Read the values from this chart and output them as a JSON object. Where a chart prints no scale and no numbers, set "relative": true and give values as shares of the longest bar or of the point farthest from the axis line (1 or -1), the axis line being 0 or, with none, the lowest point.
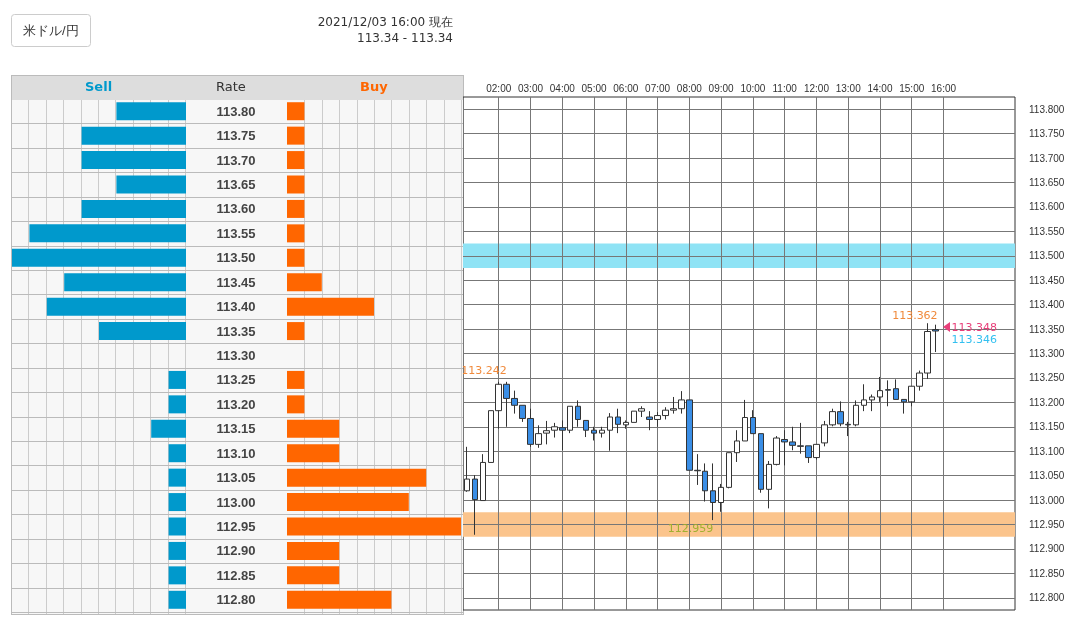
{
  "chart_data": [
    {
      "type": "bar",
      "title": "米ドル/円",
      "orientation": "horizontal",
      "relative": true,
      "ylabel": "Rate",
      "legend": false,
      "annotations": [
        "2021/12/03 16:00 現在",
        "113.34 - 113.34"
      ],
      "categories": [
        "113.80",
        "113.75",
        "113.70",
        "113.65",
        "113.60",
        "113.55",
        "113.50",
        "113.45",
        "113.40",
        "113.35",
        "113.30",
        "113.25",
        "113.20",
        "113.15",
        "113.10",
        "113.05",
        "113.00",
        "112.95",
        "112.90",
        "112.85",
        "112.80"
      ],
      "series": [
        {
          "name": "Sell",
          "color": "#0099cc",
          "values": [
            0.4,
            0.6,
            0.6,
            0.4,
            0.6,
            0.9,
            1,
            0.7,
            0.8,
            0.5,
            0,
            0.1,
            0.1,
            0.2,
            0.1,
            0.1,
            0.1,
            0.1,
            0.1,
            0.1,
            0.1
          ]
        }
      ]
    },
    {
      "type": "bar",
      "orientation": "horizontal",
      "relative": true,
      "legend": false,
      "tick_labels": false,
      "categories": [
        "113.80",
        "113.75",
        "113.70",
        "113.65",
        "113.60",
        "113.55",
        "113.50",
        "113.45",
        "113.40",
        "113.35",
        "113.30",
        "113.25",
        "113.20",
        "113.15",
        "113.10",
        "113.05",
        "113.00",
        "112.95",
        "112.90",
        "112.85",
        "112.80"
      ],
      "series": [
        {
          "name": "Buy",
          "color": "#ff6600",
          "values": [
            0.1,
            0.1,
            0.1,
            0.1,
            0.1,
            0.1,
            0.1,
            0.2,
            0.5,
            0.1,
            0,
            0.1,
            0.1,
            0.3,
            0.3,
            0.8,
            0.7,
            1,
            0.3,
            0.3,
            0.6
          ]
        }
      ]
    },
    {
      "type": "candlestick",
      "grid": true,
      "x": [
        1,
        1.25,
        1.5,
        1.75,
        2,
        2.25,
        2.5,
        2.75,
        3,
        3.25,
        3.5,
        3.75,
        4,
        4.25,
        4.5,
        4.75,
        5,
        5.25,
        5.5,
        5.75,
        6,
        6.25,
        6.5,
        6.75,
        7,
        7.25,
        7.5,
        7.75,
        8,
        8.25,
        8.5,
        8.75,
        9,
        9.25,
        9.5,
        9.75,
        10,
        10.25,
        10.5,
        10.75,
        11,
        11.25,
        11.5,
        11.75,
        12,
        12.25,
        12.5,
        12.75,
        13,
        13.25,
        13.5,
        13.75,
        14,
        14.25,
        14.5,
        14.75,
        15,
        15.25,
        15.5,
        15.75
      ],
      "ohlc": [
        [
          113.019,
          113.109,
          113.017,
          113.043
        ],
        [
          113.043,
          113.051,
          112.929,
          113.001
        ],
        [
          112.999,
          113.094,
          112.999,
          113.077
        ],
        [
          113.077,
          113.183,
          113.077,
          113.183
        ],
        [
          113.183,
          113.242,
          113.146,
          113.237
        ],
        [
          113.237,
          113.242,
          113.15,
          113.208
        ],
        [
          113.208,
          113.224,
          113.177,
          113.194
        ],
        [
          113.194,
          113.194,
          113.16,
          113.167
        ],
        [
          113.167,
          113.187,
          113.109,
          113.114
        ],
        [
          113.114,
          113.153,
          113.107,
          113.136
        ],
        [
          113.137,
          113.162,
          113.114,
          113.142
        ],
        [
          113.143,
          113.158,
          113.128,
          113.15
        ],
        [
          113.148,
          113.163,
          113.102,
          113.143
        ],
        [
          113.143,
          113.192,
          113.137,
          113.192
        ],
        [
          113.192,
          113.204,
          113.15,
          113.165
        ],
        [
          113.163,
          113.163,
          113.129,
          113.143
        ],
        [
          113.143,
          113.15,
          113.122,
          113.137
        ],
        [
          113.137,
          113.15,
          113.128,
          113.143
        ],
        [
          113.143,
          113.178,
          113.101,
          113.17
        ],
        [
          113.17,
          113.187,
          113.137,
          113.155
        ],
        [
          113.154,
          113.163,
          113.146,
          113.159
        ],
        [
          113.159,
          113.182,
          113.159,
          113.182
        ],
        [
          113.182,
          113.192,
          113.17,
          113.187
        ],
        [
          113.17,
          113.182,
          113.143,
          113.165
        ],
        [
          113.165,
          113.18,
          113.15,
          113.173
        ],
        [
          113.173,
          113.19,
          113.165,
          113.184
        ],
        [
          113.184,
          113.211,
          113.177,
          113.187
        ],
        [
          113.187,
          113.223,
          113.177,
          113.205
        ],
        [
          113.205,
          113.205,
          113.061,
          113.061
        ],
        [
          113.061,
          113.094,
          113.031,
          113.06
        ],
        [
          113.059,
          113.075,
          112.997,
          113.019
        ],
        [
          113.019,
          113.075,
          112.959,
          112.995
        ],
        [
          112.995,
          113.033,
          112.976,
          113.026
        ],
        [
          113.026,
          113.097,
          113.024,
          113.097
        ],
        [
          113.097,
          113.143,
          113.078,
          113.121
        ],
        [
          113.121,
          113.205,
          113.121,
          113.169
        ],
        [
          113.169,
          113.184,
          113.136,
          113.136
        ],
        [
          113.136,
          113.136,
          113.015,
          113.022
        ],
        [
          113.022,
          113.08,
          112.983,
          113.073
        ],
        [
          113.073,
          113.131,
          113.071,
          113.127
        ],
        [
          113.124,
          113.143,
          113.071,
          113.119
        ],
        [
          113.119,
          113.15,
          113.102,
          113.112
        ],
        [
          113.111,
          113.158,
          113.095,
          113.11
        ],
        [
          113.111,
          113.111,
          113.076,
          113.087
        ],
        [
          113.087,
          113.114,
          113.083,
          113.114
        ],
        [
          113.117,
          113.162,
          113.11,
          113.154
        ],
        [
          113.154,
          113.187,
          113.151,
          113.181
        ],
        [
          113.181,
          113.202,
          113.151,
          113.156
        ],
        [
          113.155,
          113.16,
          113.131,
          113.154
        ],
        [
          113.154,
          113.204,
          113.151,
          113.194
        ],
        [
          113.194,
          113.237,
          113.182,
          113.205
        ],
        [
          113.205,
          113.216,
          113.182,
          113.211
        ],
        [
          113.211,
          113.252,
          113.201,
          113.224
        ],
        [
          113.226,
          113.245,
          113.192,
          113.225
        ],
        [
          113.228,
          113.247,
          113.206,
          113.206
        ],
        [
          113.206,
          113.206,
          113.177,
          113.201
        ],
        [
          113.201,
          113.233,
          113.192,
          113.233
        ],
        [
          113.233,
          113.265,
          113.224,
          113.26
        ],
        [
          113.26,
          113.362,
          113.248,
          113.345
        ],
        [
          113.349,
          113.359,
          113.303,
          113.346
        ]
      ],
      "xlim": [
        0.875,
        18.25
      ],
      "xticks": [
        {
          "value": 2,
          "label": "02:00"
        },
        {
          "value": 3,
          "label": "03:00"
        },
        {
          "value": 4,
          "label": "04:00"
        },
        {
          "value": 5,
          "label": "05:00"
        },
        {
          "value": 6,
          "label": "06:00"
        },
        {
          "value": 7,
          "label": "07:00"
        },
        {
          "value": 8,
          "label": "08:00"
        },
        {
          "value": 9,
          "label": "09:00"
        },
        {
          "value": 10,
          "label": "10:00"
        },
        {
          "value": 11,
          "label": "11:00"
        },
        {
          "value": 12,
          "label": "12:00"
        },
        {
          "value": 13,
          "label": "13:00"
        },
        {
          "value": 14,
          "label": "14:00"
        },
        {
          "value": 15,
          "label": "15:00"
        },
        {
          "value": 16,
          "label": "16:00"
        }
      ],
      "ylim": [
        112.775,
        113.825
      ],
      "yticks": [
        {
          "value": 112.8,
          "label": "112.800"
        },
        {
          "value": 112.85,
          "label": "112.850"
        },
        {
          "value": 112.9,
          "label": "112.900"
        },
        {
          "value": 112.95,
          "label": "112.950"
        },
        {
          "value": 113.0,
          "label": "113.000"
        },
        {
          "value": 113.05,
          "label": "113.050"
        },
        {
          "value": 113.1,
          "label": "113.100"
        },
        {
          "value": 113.15,
          "label": "113.150"
        },
        {
          "value": 113.2,
          "label": "113.200"
        },
        {
          "value": 113.25,
          "label": "113.250"
        },
        {
          "value": 113.3,
          "label": "113.300"
        },
        {
          "value": 113.35,
          "label": "113.350"
        },
        {
          "value": 113.4,
          "label": "113.400"
        },
        {
          "value": 113.45,
          "label": "113.450"
        },
        {
          "value": 113.5,
          "label": "113.500"
        },
        {
          "value": 113.55,
          "label": "113.550"
        },
        {
          "value": 113.6,
          "label": "113.600"
        },
        {
          "value": 113.65,
          "label": "113.650"
        },
        {
          "value": 113.7,
          "label": "113.700"
        },
        {
          "value": 113.75,
          "label": "113.750"
        },
        {
          "value": 113.8,
          "label": "113.800"
        }
      ],
      "bands": [
        {
          "axis": "y",
          "from": 113.475,
          "to": 113.525,
          "color": "#8fe3f5"
        },
        {
          "axis": "y",
          "from": 112.925,
          "to": 112.975,
          "color": "#fbc48c"
        }
      ],
      "annotations": [
        {
          "text": "113.242",
          "x": 2,
          "y": 113.242
        },
        {
          "text": "112.959",
          "x": 8.75,
          "y": 112.959
        },
        {
          "text": "113.362",
          "x": 15.5,
          "y": 113.362
        },
        {
          "text": "113.348",
          "x": 15.75,
          "y": 113.348
        },
        {
          "text": "113.346",
          "x": 15.75,
          "y": 113.346
        }
      ]
    }
  ]
}
